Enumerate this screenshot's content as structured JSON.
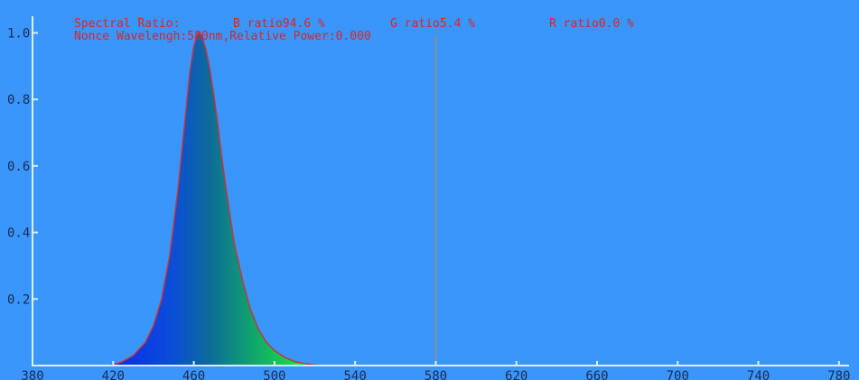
{
  "header": {
    "ratio_label": "Spectral Ratio:",
    "b_ratio": "B ratio94.6 %",
    "g_ratio": "G ratio5.4 %",
    "r_ratio": "R ratio0.0 %",
    "cursor_readout": "Nonce Wavelengh:580nm,Relative Power:0.000"
  },
  "colors": {
    "background": "#3a96fa",
    "axis": "#d8eefc",
    "curve_outline": "#c8343a",
    "header_text": "#d8262c",
    "cursor_line": "#8a8f96"
  },
  "chart_data": {
    "type": "area",
    "title": "",
    "xlabel": "",
    "ylabel": "",
    "xlim": [
      380,
      785
    ],
    "ylim": [
      0,
      1.05
    ],
    "x_ticks": [
      380,
      420,
      460,
      500,
      540,
      580,
      620,
      660,
      700,
      740,
      780
    ],
    "y_ticks": [
      0.2,
      0.4,
      0.6,
      0.8,
      1.0
    ],
    "y_tick_labels": [
      "0.2",
      "0.4",
      "0.6",
      "0.8",
      "1.0"
    ],
    "cursor_wavelength": 580,
    "series": [
      {
        "x": [
          418,
          424,
          430,
          436,
          440,
          444,
          448,
          452,
          455,
          458,
          460,
          462,
          463,
          464,
          466,
          468,
          470,
          472,
          474,
          476,
          478,
          480,
          484,
          488,
          492,
          496,
          500,
          505,
          510,
          515,
          520,
          525
        ],
        "values": [
          0.0,
          0.01,
          0.03,
          0.07,
          0.12,
          0.2,
          0.33,
          0.52,
          0.7,
          0.88,
          0.96,
          1.0,
          1.0,
          0.99,
          0.95,
          0.89,
          0.81,
          0.72,
          0.62,
          0.53,
          0.45,
          0.37,
          0.26,
          0.17,
          0.11,
          0.07,
          0.045,
          0.025,
          0.012,
          0.006,
          0.002,
          0.0
        ]
      }
    ]
  }
}
